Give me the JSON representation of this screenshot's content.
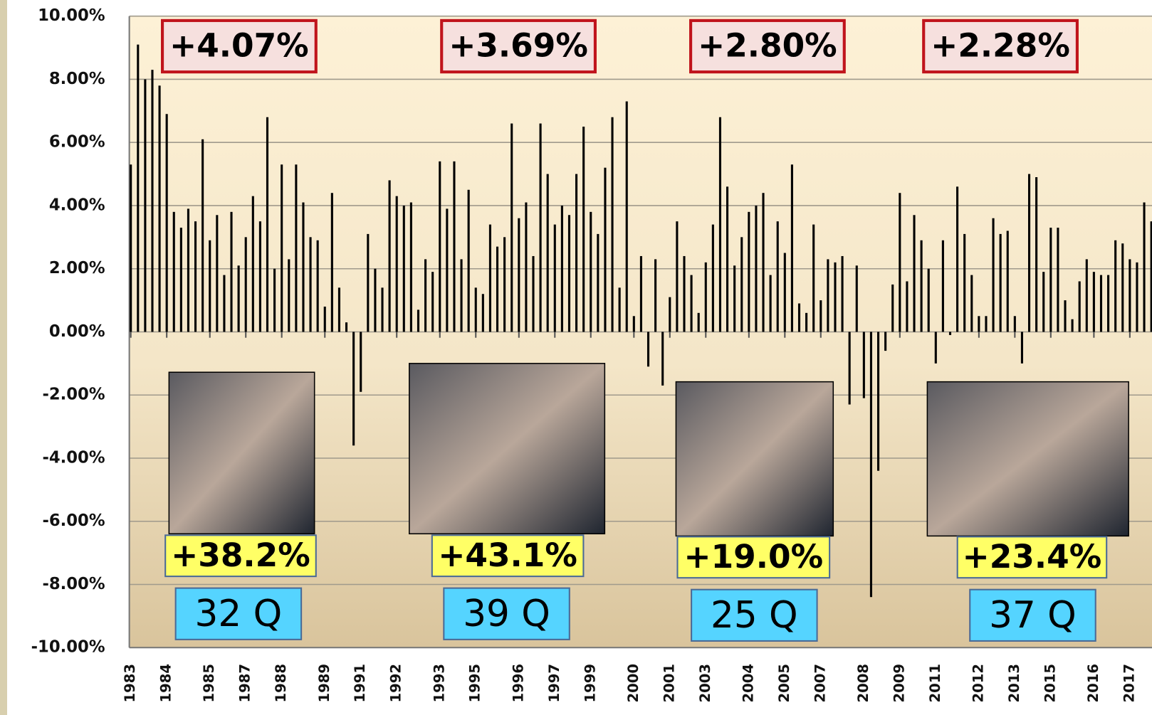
{
  "chart_data": {
    "type": "bar",
    "categories": [
      "1983",
      null,
      null,
      null,
      null,
      "1984",
      null,
      null,
      null,
      null,
      null,
      "1985",
      null,
      null,
      null,
      null,
      "1987",
      null,
      null,
      null,
      null,
      "1988",
      null,
      null,
      null,
      null,
      null,
      "1989",
      null,
      null,
      null,
      null,
      "1991",
      null,
      null,
      null,
      null,
      "1992",
      null,
      null,
      null,
      null,
      null,
      "1993",
      null,
      null,
      null,
      null,
      "1995",
      null,
      null,
      null,
      null,
      null,
      "1996",
      null,
      null,
      null,
      null,
      "1997",
      null,
      null,
      null,
      null,
      "1999",
      null,
      null,
      null,
      null,
      null,
      "2000",
      null,
      null,
      null,
      null,
      "2001",
      null,
      null,
      null,
      null,
      "2003",
      null,
      null,
      null,
      null,
      null,
      "2004",
      null,
      null,
      null,
      null,
      "2005",
      null,
      null,
      null,
      null,
      "2007",
      null,
      null,
      null,
      null,
      null,
      "2008",
      null,
      null,
      null,
      null,
      "2009",
      null,
      null,
      null,
      null,
      "2011",
      null,
      null,
      null,
      null,
      null,
      "2012",
      null,
      null,
      null,
      null,
      "2013",
      null,
      null,
      null,
      null,
      "2015",
      null,
      null,
      null,
      null,
      null,
      "2016",
      null,
      null,
      null,
      null,
      "2017",
      null,
      null,
      null
    ],
    "values": [
      5.3,
      9.1,
      8.0,
      8.3,
      7.8,
      6.9,
      3.8,
      3.3,
      3.9,
      3.5,
      6.1,
      2.9,
      3.7,
      1.8,
      3.8,
      2.1,
      3.0,
      4.3,
      3.5,
      6.8,
      2.0,
      5.3,
      2.3,
      5.3,
      4.1,
      3.0,
      2.9,
      0.8,
      4.4,
      1.4,
      0.3,
      -3.6,
      -1.9,
      3.1,
      2.0,
      1.4,
      4.8,
      4.3,
      4.0,
      4.1,
      0.7,
      2.3,
      1.9,
      5.4,
      3.9,
      5.4,
      2.3,
      4.5,
      1.4,
      1.2,
      3.4,
      2.7,
      3.0,
      6.6,
      3.6,
      4.1,
      2.4,
      6.6,
      5.0,
      3.4,
      4.0,
      3.7,
      5.0,
      6.5,
      3.8,
      3.1,
      5.2,
      6.8,
      1.4,
      7.3,
      0.5,
      2.4,
      -1.1,
      2.3,
      -1.7,
      1.1,
      3.5,
      2.4,
      1.8,
      0.6,
      2.2,
      3.4,
      6.8,
      4.6,
      2.1,
      3.0,
      3.8,
      4.0,
      4.4,
      1.8,
      3.5,
      2.5,
      5.3,
      0.9,
      0.6,
      3.4,
      1.0,
      2.3,
      2.2,
      2.4,
      -2.3,
      2.1,
      -2.1,
      -8.4,
      -4.4,
      -0.6,
      1.5,
      4.4,
      1.6,
      3.7,
      2.9,
      2.0,
      -1.0,
      2.9,
      -0.1,
      4.6,
      3.1,
      1.8,
      0.5,
      0.5,
      3.6,
      3.1,
      3.2,
      0.5,
      -1.0,
      5.0,
      4.9,
      1.9,
      3.3,
      3.3,
      1.0,
      0.4,
      1.6,
      2.3,
      1.9,
      1.8,
      1.8,
      2.9,
      2.8,
      2.3,
      2.2,
      4.1,
      3.5
    ],
    "color": "#000000",
    "ylim": [
      -10,
      10
    ],
    "yticks": [
      {
        "value": -10,
        "label": "-10.00%"
      },
      {
        "value": -8,
        "label": "-8.00%"
      },
      {
        "value": -6,
        "label": "-6.00%"
      },
      {
        "value": -4,
        "label": "-4.00%"
      },
      {
        "value": -2,
        "label": "-2.00%"
      },
      {
        "value": 0,
        "label": "0.00%"
      },
      {
        "value": 2,
        "label": "2.00%"
      },
      {
        "value": 4,
        "label": "4.00%"
      },
      {
        "value": 6,
        "label": "6.00%"
      },
      {
        "value": 8,
        "label": "8.00%"
      },
      {
        "value": 10,
        "label": "10.00%"
      }
    ],
    "grid": true,
    "annotations": [
      {
        "average": "+4.07%",
        "total": "+38.2%",
        "quarters": "32 Q"
      },
      {
        "average": "+3.69%",
        "total": "+43.1%",
        "quarters": "39 Q"
      },
      {
        "average": "+2.80%",
        "total": "+19.0%",
        "quarters": "25 Q"
      },
      {
        "average": "+2.28%",
        "total": "+23.4%",
        "quarters": "37 Q"
      }
    ]
  }
}
